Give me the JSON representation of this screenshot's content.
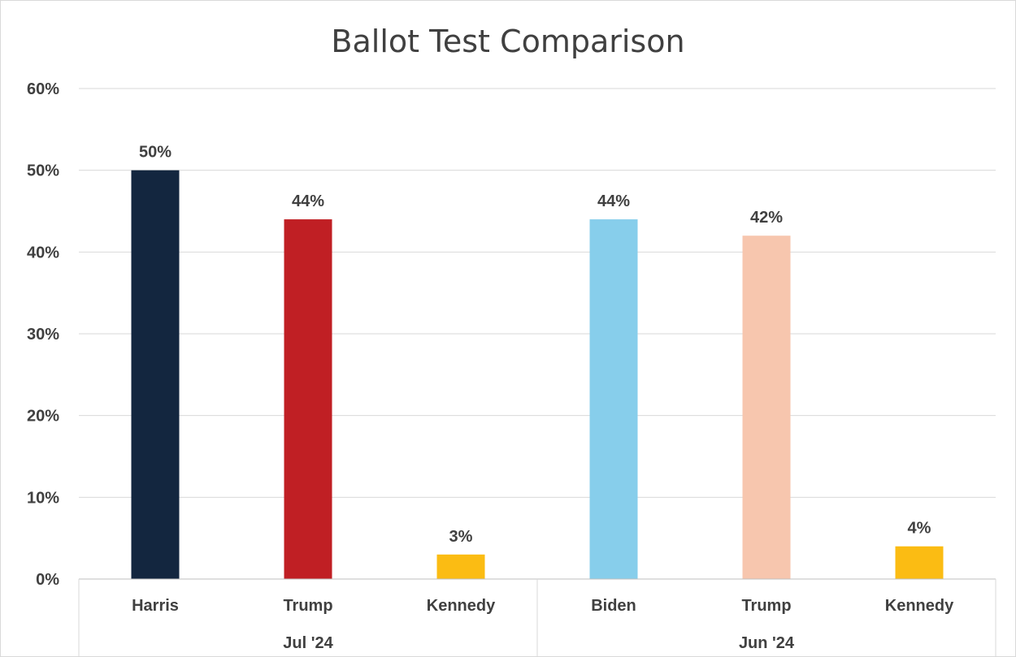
{
  "chart_data": {
    "type": "bar",
    "title": "Ballot Test Comparison",
    "xlabel": "",
    "ylabel": "",
    "ylim": [
      0,
      60
    ],
    "yticks": [
      "0%",
      "10%",
      "20%",
      "30%",
      "40%",
      "50%",
      "60%"
    ],
    "ytick_values": [
      0,
      10,
      20,
      30,
      40,
      50,
      60
    ],
    "grid": true,
    "groups": [
      {
        "name": "Jul '24",
        "categories": [
          "Harris",
          "Trump",
          "Kennedy"
        ],
        "values": [
          50,
          44,
          3
        ],
        "labels": [
          "50%",
          "44%",
          "3%"
        ],
        "colors": [
          "#13263f",
          "#c01f24",
          "#fbbc13"
        ]
      },
      {
        "name": "Jun '24",
        "categories": [
          "Biden",
          "Trump",
          "Kennedy"
        ],
        "values": [
          44,
          42,
          4
        ],
        "labels": [
          "44%",
          "42%",
          "4%"
        ],
        "colors": [
          "#87ceeb",
          "#f7c6ae",
          "#fbbc13"
        ]
      }
    ]
  }
}
